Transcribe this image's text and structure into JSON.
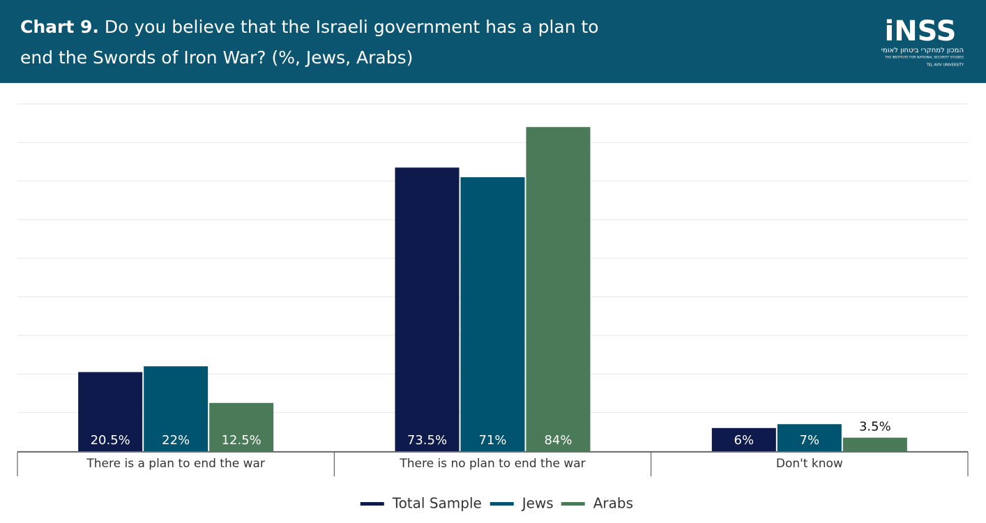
{
  "chart_data": {
    "type": "bar",
    "title_prefix": "Chart 9.",
    "title": "Do you believe that the Israeli government has a plan to end the Swords of Iron War? (%, Jews, Arabs)",
    "logo": {
      "name": "iNSS",
      "hebrew": "המכון למחקרי ביטחון לאומי",
      "english": "THE INSTITUTE FOR NATIONAL SECURITY STUDIES",
      "university": "TEL AVIV UNIVERSITY"
    },
    "categories": [
      "There is a plan to end the war",
      "There is no plan to end the war",
      "Don't know"
    ],
    "series": [
      {
        "name": "Total Sample",
        "color": "#0e1a4b",
        "values": [
          20.5,
          73.5,
          6
        ],
        "value_labels": [
          "20.5%",
          "73.5%",
          "6%"
        ]
      },
      {
        "name": "Jews",
        "color": "#01546f",
        "values": [
          22,
          71,
          7
        ],
        "value_labels": [
          "22%",
          "71%",
          "7%"
        ]
      },
      {
        "name": "Arabs",
        "color": "#4a7a58",
        "values": [
          12.5,
          84,
          3.5
        ],
        "value_labels": [
          "12.5%",
          "84%",
          "3.5%"
        ]
      }
    ],
    "ylim": [
      0,
      90
    ],
    "yticks": [
      0,
      10,
      20,
      30,
      40,
      50,
      60,
      70,
      80,
      90
    ],
    "grid": true,
    "legend": "bottom"
  }
}
